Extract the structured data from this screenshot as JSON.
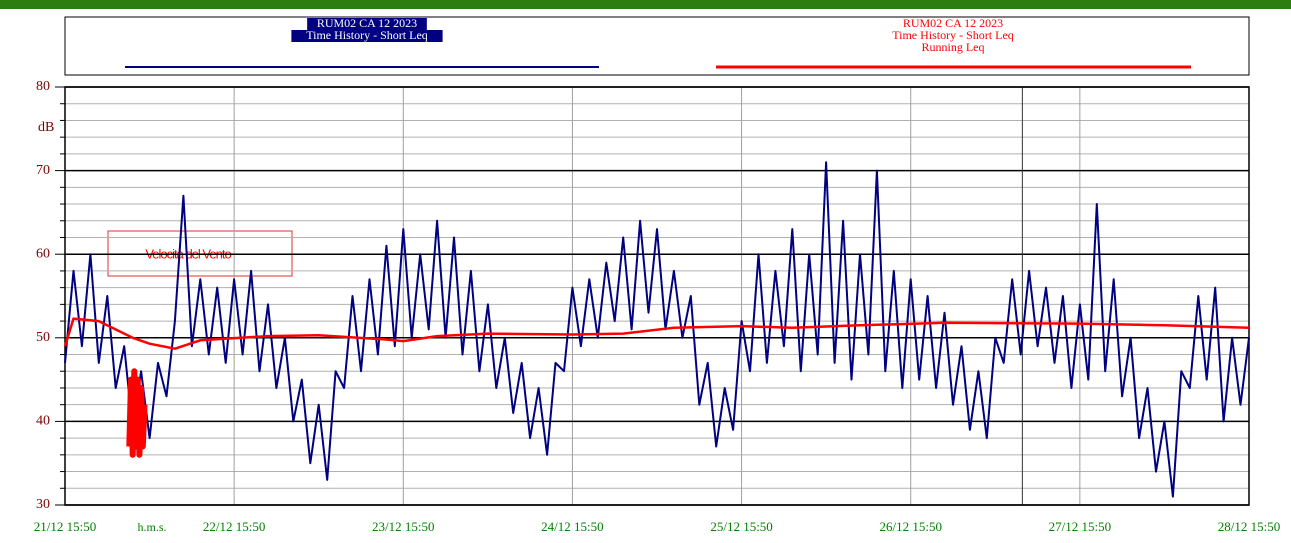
{
  "chart_data": {
    "type": "line",
    "y_label": "dB",
    "x_unit_label": "h.m.s.",
    "xlim": [
      0,
      7
    ],
    "xticks": [
      {
        "value": 0,
        "label": "21/12 15:50"
      },
      {
        "value": 1,
        "label": "22/12 15:50"
      },
      {
        "value": 2,
        "label": "23/12 15:50"
      },
      {
        "value": 3,
        "label": "24/12 15:50"
      },
      {
        "value": 4,
        "label": "25/12 15:50"
      },
      {
        "value": 5,
        "label": "26/12 15:50"
      },
      {
        "value": 6,
        "label": "27/12 15:50"
      },
      {
        "value": 7,
        "label": "28/12 15:50"
      }
    ],
    "ylim": [
      30,
      80
    ],
    "yticks": [
      30,
      40,
      50,
      60,
      70,
      80
    ],
    "grid": true,
    "cursor_x": 5.66,
    "annotation": "Velocità del Vento",
    "series": [
      {
        "name": "RUM02  CA  12  2023",
        "description": [
          "Time History - Short Leq"
        ],
        "color": "#000080",
        "x": [
          0,
          0.05,
          0.1,
          0.15,
          0.2,
          0.25,
          0.3,
          0.35,
          0.4,
          0.45,
          0.5,
          0.55,
          0.6,
          0.65,
          0.7,
          0.75,
          0.8,
          0.85,
          0.9,
          0.95,
          1,
          1.05,
          1.1,
          1.15,
          1.2,
          1.25,
          1.3,
          1.35,
          1.4,
          1.45,
          1.5,
          1.55,
          1.6,
          1.65,
          1.7,
          1.75,
          1.8,
          1.85,
          1.9,
          1.95,
          2,
          2.05,
          2.1,
          2.15,
          2.2,
          2.25,
          2.3,
          2.35,
          2.4,
          2.45,
          2.5,
          2.55,
          2.6,
          2.65,
          2.7,
          2.75,
          2.8,
          2.85,
          2.9,
          2.95,
          3,
          3.05,
          3.1,
          3.15,
          3.2,
          3.25,
          3.3,
          3.35,
          3.4,
          3.45,
          3.5,
          3.55,
          3.6,
          3.65,
          3.7,
          3.75,
          3.8,
          3.85,
          3.9,
          3.95,
          4,
          4.05,
          4.1,
          4.15,
          4.2,
          4.25,
          4.3,
          4.35,
          4.4,
          4.45,
          4.5,
          4.55,
          4.6,
          4.65,
          4.7,
          4.75,
          4.8,
          4.85,
          4.9,
          4.95,
          5,
          5.05,
          5.1,
          5.15,
          5.2,
          5.25,
          5.3,
          5.35,
          5.4,
          5.45,
          5.5,
          5.55,
          5.6,
          5.65,
          5.7,
          5.75,
          5.8,
          5.85,
          5.9,
          5.95,
          6,
          6.05,
          6.1,
          6.15,
          6.2,
          6.25,
          6.3,
          6.35,
          6.4,
          6.45,
          6.5,
          6.55,
          6.6,
          6.65,
          6.7,
          6.75,
          6.8,
          6.85,
          6.9,
          6.95,
          7
        ],
        "values": [
          47,
          58,
          49,
          60,
          47,
          55,
          44,
          49,
          39,
          46,
          38,
          47,
          43,
          52,
          67,
          49,
          57,
          48,
          56,
          47,
          57,
          48,
          58,
          46,
          54,
          44,
          50,
          40,
          45,
          35,
          42,
          33,
          46,
          44,
          55,
          46,
          57,
          48,
          61,
          49,
          63,
          50,
          60,
          51,
          64,
          50,
          62,
          48,
          58,
          46,
          54,
          44,
          50,
          41,
          47,
          38,
          44,
          36,
          47,
          46,
          56,
          49,
          57,
          50,
          59,
          52,
          62,
          51,
          64,
          53,
          63,
          51,
          58,
          50,
          55,
          42,
          47,
          37,
          44,
          39,
          52,
          46,
          60,
          47,
          58,
          49,
          63,
          46,
          60,
          48,
          71,
          47,
          64,
          45,
          60,
          48,
          70,
          46,
          58,
          44,
          57,
          45,
          55,
          44,
          53,
          42,
          49,
          39,
          46,
          38,
          50,
          47,
          57,
          48,
          58,
          49,
          56,
          47,
          55,
          44,
          54,
          45,
          66,
          46,
          57,
          43,
          50,
          38,
          44,
          34,
          40,
          31,
          46,
          44,
          55,
          45,
          56,
          40,
          50,
          42,
          50
        ]
      },
      {
        "name": "RUM02  CA  12  2023",
        "description": [
          "Time History - Short Leq",
          "Running Leq"
        ],
        "color": "#ff0000",
        "x": [
          0,
          0.05,
          0.2,
          0.4,
          0.5,
          0.65,
          0.8,
          1.2,
          1.5,
          1.9,
          2,
          2.2,
          2.5,
          3,
          3.3,
          3.6,
          4,
          4.3,
          4.7,
          5.2,
          6,
          6.5,
          7
        ],
        "values": [
          49,
          52.3,
          52,
          50,
          49.3,
          48.7,
          49.7,
          50.2,
          50.3,
          49.8,
          49.6,
          50.2,
          50.5,
          50.4,
          50.5,
          51.2,
          51.4,
          51.2,
          51.5,
          51.8,
          51.7,
          51.5,
          51.2
        ]
      }
    ],
    "masked": {
      "color": "#ff0000",
      "x": [
        0.38,
        0.39,
        0.4,
        0.41,
        0.42,
        0.43,
        0.44,
        0.45,
        0.46,
        0.47
      ],
      "values": [
        37,
        45,
        36,
        46,
        37,
        45,
        36,
        44,
        37,
        42
      ]
    }
  }
}
